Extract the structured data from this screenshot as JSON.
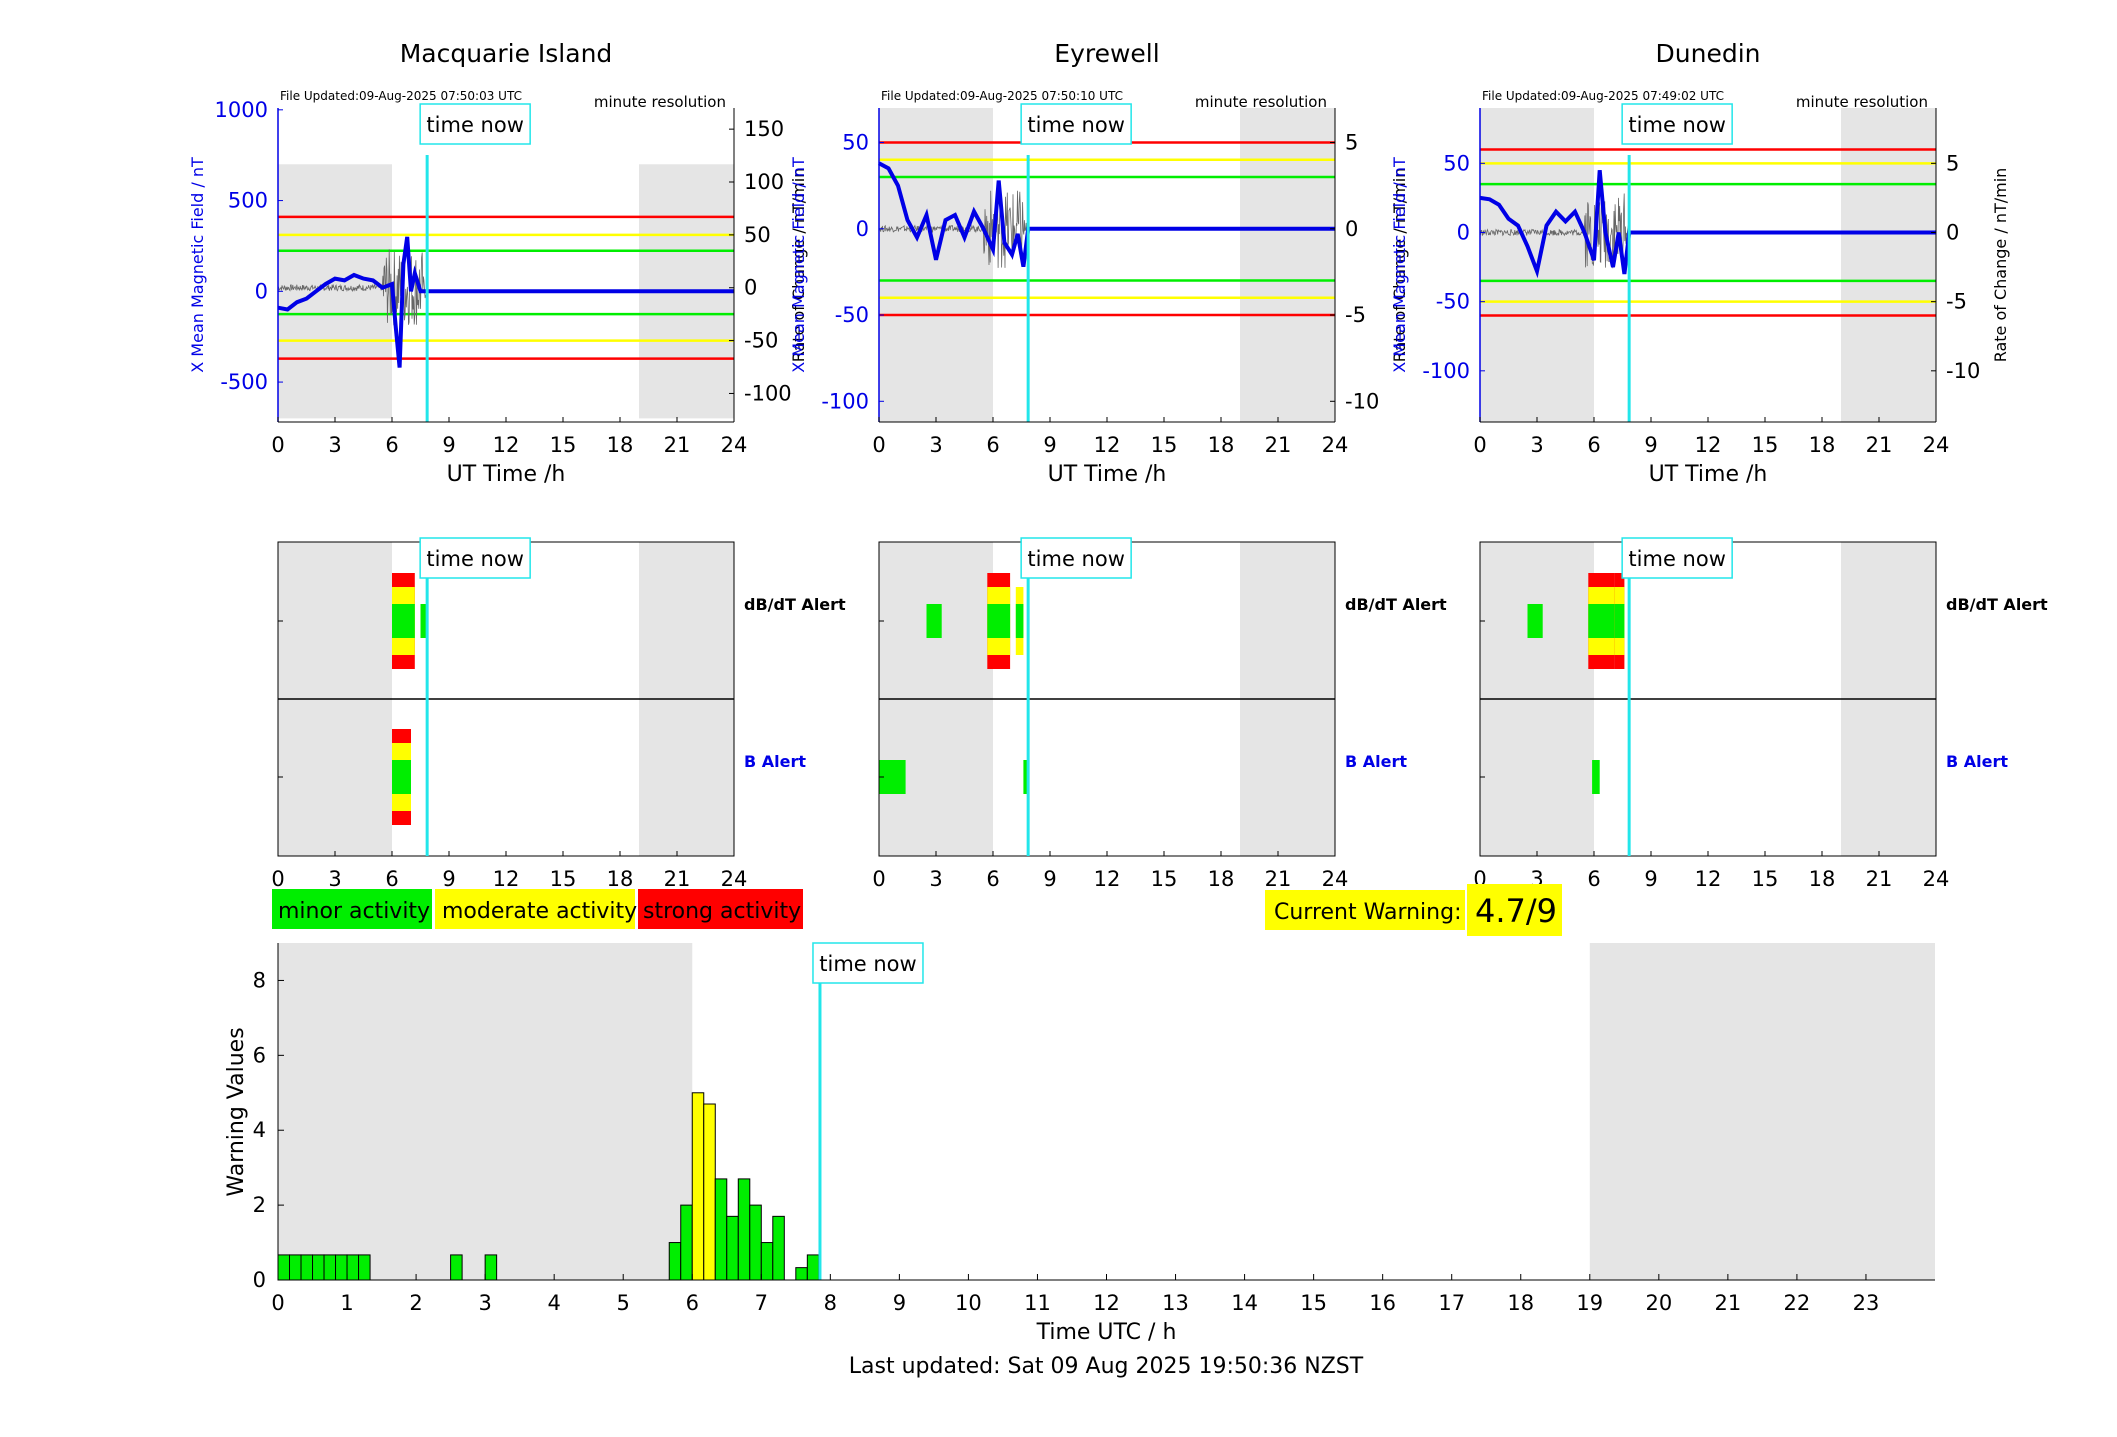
{
  "stations": [
    {
      "name": "Macquarie Island",
      "file_updated": "File Updated:09-Aug-2025 07:50:03 UTC",
      "resolution": "minute resolution",
      "ylabel_left": "X Mean Magnetic Field / nT",
      "ylabel_right": "Rate of Change / nT/min",
      "yticks_left": [
        -500,
        0,
        500,
        1000
      ],
      "yticks_right": [
        -100,
        -50,
        0,
        50,
        100,
        150
      ],
      "ylim_left": [
        -720,
        1010
      ],
      "ylim_right": [
        -127,
        170
      ]
    },
    {
      "name": "Eyrewell",
      "file_updated": "File Updated:09-Aug-2025 07:50:10 UTC",
      "resolution": "minute resolution",
      "ylabel_left": "X Mean Magnetic Field / nT",
      "ylabel_right": "Rate of Change / nT/min",
      "yticks_left": [
        -100,
        -50,
        0,
        50
      ],
      "yticks_right": [
        -10,
        -5,
        0,
        5
      ],
      "ylim_left": [
        -112,
        70
      ],
      "ylim_right": [
        -11.2,
        7
      ]
    },
    {
      "name": "Dunedin",
      "file_updated": "File Updated:09-Aug-2025 07:49:02 UTC",
      "resolution": "minute resolution",
      "ylabel_left": "X Mean Magnetic Field / nT",
      "ylabel_right": "Rate of Change / nT/min",
      "yticks_left": [
        -100,
        -50,
        0,
        50
      ],
      "yticks_right": [
        -10,
        -5,
        0,
        5
      ],
      "ylim_left": [
        -137,
        90
      ],
      "ylim_right": [
        -13.7,
        9
      ]
    }
  ],
  "common": {
    "xlabel": "UT Time /h",
    "xticks": [
      0,
      3,
      6,
      9,
      12,
      15,
      18,
      21,
      24
    ],
    "time_now_label": "time now",
    "time_now_hour": 7.85,
    "dbdt_label": "dB/dT Alert",
    "b_label": "B Alert"
  },
  "legend": {
    "minor": "minor activity",
    "moderate": "moderate activity",
    "strong": "strong activity"
  },
  "current_warning": {
    "label": "Current Warning:",
    "value": "4.7/9"
  },
  "footer": {
    "last_updated": "Last updated: Sat 09 Aug 2025 19:50:36 NZST"
  },
  "colors": {
    "minor": "#00ee00",
    "moderate": "#ffff00",
    "strong": "#ff0000",
    "time_now": "#22e6ea",
    "field": "#0000e6",
    "shade": "#e5e5e5"
  },
  "chart_data": [
    {
      "type": "line",
      "station": "Macquarie Island",
      "xlabel": "UT Time /h",
      "xlim": [
        0,
        24
      ],
      "night_shading": [
        [
          0,
          6
        ],
        [
          19,
          24
        ]
      ],
      "thresholds_right": {
        "minor": [
          -25,
          35
        ],
        "moderate": [
          -50,
          50
        ],
        "strong": [
          -67,
          67
        ]
      },
      "field_series": {
        "x": [
          0,
          0.5,
          1,
          1.5,
          2,
          2.5,
          3,
          3.5,
          4,
          4.5,
          5,
          5.5,
          6,
          6.2,
          6.4,
          6.6,
          6.8,
          7,
          7.2,
          7.5,
          7.85,
          24
        ],
        "y": [
          -90,
          -100,
          -60,
          -40,
          0,
          40,
          70,
          60,
          90,
          70,
          60,
          20,
          40,
          -200,
          -420,
          150,
          300,
          0,
          100,
          0,
          0,
          0
        ]
      },
      "dbdt_alert": [
        [
          6,
          7.2,
          "strong"
        ],
        [
          7.5,
          7.8,
          "minor"
        ]
      ],
      "b_alert": [
        [
          6,
          7,
          "strong"
        ]
      ]
    },
    {
      "type": "line",
      "station": "Eyrewell",
      "xlabel": "UT Time /h",
      "xlim": [
        0,
        24
      ],
      "night_shading": [
        [
          0,
          6
        ],
        [
          19,
          24
        ]
      ],
      "thresholds_left": {
        "minor": [
          -30,
          30
        ],
        "moderate": [
          -40,
          40
        ],
        "strong": [
          -50,
          50
        ]
      },
      "field_series": {
        "x": [
          0,
          0.5,
          1,
          1.5,
          2,
          2.5,
          3,
          3.5,
          4,
          4.5,
          5,
          5.5,
          6,
          6.3,
          6.6,
          7,
          7.3,
          7.6,
          7.85,
          24
        ],
        "y": [
          38,
          35,
          25,
          5,
          -5,
          8,
          -18,
          5,
          8,
          -5,
          10,
          0,
          -12,
          28,
          -8,
          -15,
          -3,
          -22,
          0,
          0
        ]
      },
      "dbdt_alert": [
        [
          2.5,
          3.3,
          "minor"
        ],
        [
          5.7,
          6.9,
          "strong"
        ],
        [
          7.2,
          7.6,
          "moderate"
        ]
      ],
      "b_alert": [
        [
          0,
          1.4,
          "minor"
        ],
        [
          7.6,
          7.8,
          "minor"
        ]
      ]
    },
    {
      "type": "line",
      "station": "Dunedin",
      "xlabel": "UT Time /h",
      "xlim": [
        0,
        24
      ],
      "night_shading": [
        [
          0,
          6
        ],
        [
          19,
          24
        ]
      ],
      "thresholds_left": {
        "minor": [
          -35,
          35
        ],
        "moderate": [
          -50,
          50
        ],
        "strong": [
          -60,
          60
        ]
      },
      "field_series": {
        "x": [
          0,
          0.5,
          1,
          1.5,
          2,
          2.5,
          3,
          3.5,
          4,
          4.5,
          5,
          5.5,
          6,
          6.3,
          6.6,
          7,
          7.3,
          7.6,
          7.85,
          24
        ],
        "y": [
          25,
          24,
          20,
          10,
          5,
          -10,
          -28,
          5,
          15,
          8,
          15,
          0,
          -20,
          45,
          0,
          -25,
          0,
          -30,
          0,
          0
        ]
      },
      "dbdt_alert": [
        [
          2.5,
          3.3,
          "minor"
        ],
        [
          5.7,
          7.1,
          "strong"
        ],
        [
          7.1,
          7.6,
          "strong"
        ]
      ],
      "b_alert": [
        [
          5.9,
          6.3,
          "minor"
        ]
      ]
    },
    {
      "type": "bar",
      "xlabel": "Time UTC / h",
      "ylabel": "Warning Values",
      "xlim": [
        0,
        24
      ],
      "ylim": [
        0,
        9
      ],
      "xticks": [
        0,
        1,
        2,
        3,
        4,
        5,
        6,
        7,
        8,
        9,
        10,
        11,
        12,
        13,
        14,
        15,
        16,
        17,
        18,
        19,
        20,
        21,
        22,
        23
      ],
      "yticks": [
        0,
        2,
        4,
        6,
        8
      ],
      "night_shading": [
        [
          0,
          6
        ],
        [
          19,
          24
        ]
      ],
      "bar_width_hours": 0.1667,
      "bars": [
        {
          "x": 0,
          "value": 0.67,
          "level": "minor"
        },
        {
          "x": 0.1667,
          "value": 0.67,
          "level": "minor"
        },
        {
          "x": 0.3333,
          "value": 0.67,
          "level": "minor"
        },
        {
          "x": 0.5,
          "value": 0.67,
          "level": "minor"
        },
        {
          "x": 0.6667,
          "value": 0.67,
          "level": "minor"
        },
        {
          "x": 0.8333,
          "value": 0.67,
          "level": "minor"
        },
        {
          "x": 1,
          "value": 0.67,
          "level": "minor"
        },
        {
          "x": 1.1667,
          "value": 0.67,
          "level": "minor"
        },
        {
          "x": 2.5,
          "value": 0.67,
          "level": "minor"
        },
        {
          "x": 3,
          "value": 0.67,
          "level": "minor"
        },
        {
          "x": 5.6667,
          "value": 1.0,
          "level": "minor"
        },
        {
          "x": 5.8333,
          "value": 2.0,
          "level": "minor"
        },
        {
          "x": 6,
          "value": 5.0,
          "level": "moderate"
        },
        {
          "x": 6.1667,
          "value": 4.7,
          "level": "moderate"
        },
        {
          "x": 6.3333,
          "value": 2.7,
          "level": "minor"
        },
        {
          "x": 6.5,
          "value": 1.7,
          "level": "minor"
        },
        {
          "x": 6.6667,
          "value": 2.7,
          "level": "minor"
        },
        {
          "x": 6.8333,
          "value": 2.0,
          "level": "minor"
        },
        {
          "x": 7,
          "value": 1.0,
          "level": "minor"
        },
        {
          "x": 7.1667,
          "value": 1.7,
          "level": "minor"
        },
        {
          "x": 7.5,
          "value": 0.33,
          "level": "minor"
        },
        {
          "x": 7.6667,
          "value": 0.67,
          "level": "minor"
        }
      ],
      "time_now_hour": 7.85
    }
  ]
}
